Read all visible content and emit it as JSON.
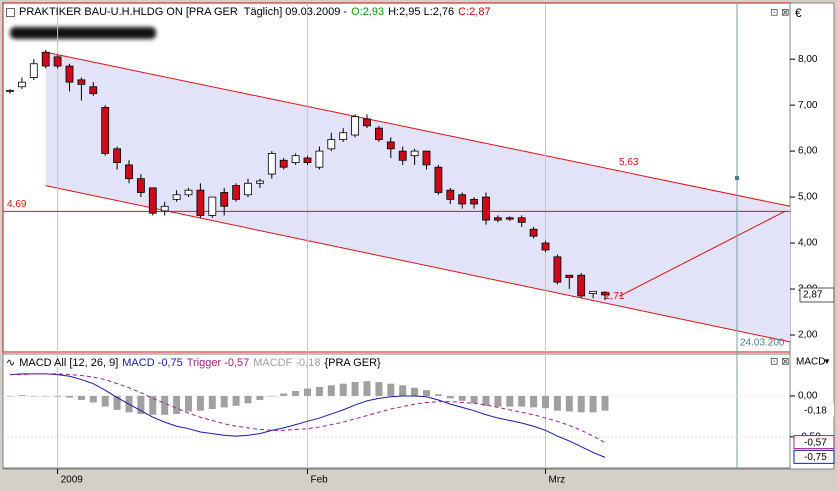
{
  "chart_data": [
    {
      "type": "candlestick",
      "title": "PRAKTIKER BAU-U.H.HLDG ON [PRA GER  Täglich] 09.03.2009 -",
      "info": [
        "O:2,93",
        "H:2,95 L:2,76",
        "C:2,87"
      ],
      "currency": "€",
      "categories": [
        null,
        null,
        null,
        null,
        "2009",
        null,
        null,
        null,
        null,
        null,
        null,
        null,
        null,
        null,
        null,
        null,
        null,
        null,
        null,
        null,
        null,
        null,
        null,
        null,
        null,
        "Feb",
        null,
        null,
        null,
        null,
        null,
        null,
        null,
        null,
        null,
        null,
        null,
        null,
        null,
        null,
        null,
        null,
        null,
        null,
        null,
        "Mrz",
        null,
        null,
        null,
        null,
        null
      ],
      "open": [
        7.3,
        7.4,
        7.6,
        8.15,
        8.05,
        7.85,
        7.55,
        7.4,
        6.95,
        6.05,
        5.7,
        5.4,
        5.2,
        4.7,
        4.95,
        5.05,
        5.15,
        4.6,
        5.1,
        5.25,
        5.05,
        5.3,
        5.5,
        5.8,
        5.75,
        5.85,
        5.65,
        6.05,
        6.25,
        6.35,
        6.7,
        6.5,
        6.2,
        6.0,
        5.9,
        6.0,
        5.65,
        5.15,
        5.05,
        4.95,
        5.0,
        4.55,
        4.55,
        4.55,
        4.3,
        4.0,
        3.7,
        3.3,
        3.3,
        2.9,
        2.93
      ],
      "high": [
        7.35,
        7.6,
        8.0,
        8.2,
        8.1,
        7.9,
        7.6,
        7.5,
        7.0,
        6.1,
        5.8,
        5.5,
        5.2,
        4.9,
        5.15,
        5.2,
        5.3,
        5.0,
        5.2,
        5.3,
        5.4,
        5.4,
        6.0,
        5.85,
        5.95,
        5.9,
        6.1,
        6.4,
        6.5,
        6.8,
        6.8,
        6.55,
        6.3,
        6.1,
        6.05,
        6.0,
        5.7,
        5.2,
        5.1,
        5.0,
        5.1,
        4.6,
        4.58,
        4.6,
        4.35,
        4.05,
        3.75,
        3.3,
        3.35,
        2.95,
        2.95
      ],
      "low": [
        7.25,
        7.35,
        7.55,
        7.8,
        7.8,
        7.3,
        7.1,
        7.2,
        5.9,
        5.6,
        5.3,
        5.0,
        4.6,
        4.6,
        4.9,
        5.0,
        4.55,
        4.55,
        4.6,
        4.9,
        5.0,
        5.2,
        5.4,
        5.6,
        5.7,
        5.7,
        5.6,
        6.0,
        6.2,
        6.3,
        6.5,
        6.2,
        5.85,
        5.7,
        5.7,
        5.6,
        5.05,
        4.85,
        4.75,
        4.75,
        4.4,
        4.45,
        4.48,
        4.35,
        4.1,
        3.8,
        3.1,
        3.0,
        2.8,
        2.8,
        2.76
      ],
      "close": [
        7.32,
        7.5,
        7.9,
        7.85,
        7.85,
        7.5,
        7.45,
        7.25,
        5.95,
        5.75,
        5.4,
        5.1,
        4.65,
        4.8,
        5.05,
        5.15,
        4.6,
        5.0,
        4.8,
        4.95,
        5.3,
        5.35,
        5.95,
        5.65,
        5.9,
        5.75,
        6.0,
        6.25,
        6.4,
        6.75,
        6.55,
        6.25,
        6.05,
        5.8,
        6.0,
        5.7,
        5.1,
        4.95,
        4.85,
        4.85,
        4.5,
        4.5,
        4.52,
        4.45,
        4.15,
        3.85,
        3.15,
        3.25,
        2.85,
        2.95,
        2.87
      ],
      "up_color": "#ffffff",
      "down_color": "#cc0a1a",
      "ylim": [
        1.63,
        9.2
      ],
      "yticks": [
        {
          "value": 2,
          "label": "2,00"
        },
        {
          "value": 3,
          "label": "3,00"
        },
        {
          "value": 4,
          "label": "4,00"
        },
        {
          "value": 5,
          "label": "5,00"
        },
        {
          "value": 6,
          "label": "6,00"
        },
        {
          "value": 7,
          "label": "7,00"
        },
        {
          "value": 8,
          "label": "8,00"
        }
      ],
      "grid": true,
      "channel": {
        "upper": [
          8.15,
          4.8
        ],
        "lower": [
          5.25,
          1.85
        ],
        "color": "#dd1111",
        "fill": "#e2e2f8"
      },
      "hlines": [
        {
          "value": 4.69,
          "label": "4,69",
          "color": "#dd1111"
        }
      ],
      "annotations": [
        {
          "value": 5.63,
          "label": "5,63"
        },
        {
          "value": 2.71,
          "label": "2,71"
        }
      ],
      "last_price": {
        "value": 2.87,
        "label": "2,87"
      },
      "cursor_label": "24.03.200"
    },
    {
      "type": "macd",
      "title": "MACD All [12, 26, 9]",
      "symbol": "{PRA GER}",
      "axis_title": "MACD",
      "series": [
        {
          "name": "MACD",
          "color": "#1a1aa8",
          "style": "line",
          "last": {
            "value": -0.75,
            "label": "-0,75"
          },
          "values": [
            0.26,
            0.27,
            0.27,
            0.27,
            0.26,
            0.24,
            0.2,
            0.15,
            0.07,
            -0.02,
            -0.1,
            -0.18,
            -0.26,
            -0.32,
            -0.37,
            -0.4,
            -0.44,
            -0.46,
            -0.48,
            -0.49,
            -0.48,
            -0.46,
            -0.42,
            -0.39,
            -0.35,
            -0.31,
            -0.27,
            -0.22,
            -0.17,
            -0.11,
            -0.06,
            -0.03,
            -0.01,
            0.0,
            0.0,
            -0.01,
            -0.05,
            -0.1,
            -0.14,
            -0.18,
            -0.23,
            -0.27,
            -0.3,
            -0.33,
            -0.37,
            -0.42,
            -0.49,
            -0.55,
            -0.62,
            -0.69,
            -0.75
          ]
        },
        {
          "name": "Trigger",
          "color": "#a0208a",
          "style": "dashed",
          "last": {
            "value": -0.57,
            "label": "-0,57"
          },
          "values": [
            0.26,
            0.26,
            0.27,
            0.27,
            0.27,
            0.26,
            0.25,
            0.23,
            0.2,
            0.15,
            0.1,
            0.04,
            -0.03,
            -0.09,
            -0.15,
            -0.21,
            -0.26,
            -0.3,
            -0.34,
            -0.37,
            -0.39,
            -0.41,
            -0.42,
            -0.42,
            -0.41,
            -0.4,
            -0.38,
            -0.35,
            -0.32,
            -0.28,
            -0.24,
            -0.2,
            -0.16,
            -0.13,
            -0.1,
            -0.08,
            -0.07,
            -0.07,
            -0.08,
            -0.09,
            -0.11,
            -0.14,
            -0.17,
            -0.2,
            -0.23,
            -0.27,
            -0.31,
            -0.36,
            -0.42,
            -0.49,
            -0.57
          ]
        },
        {
          "name": "MACDF",
          "color": "#a0a0a0",
          "style": "bar",
          "last": {
            "value": -0.18,
            "label": "-0,18"
          },
          "values": [
            0.0,
            0.01,
            0.0,
            0.0,
            -0.01,
            -0.02,
            -0.05,
            -0.08,
            -0.13,
            -0.17,
            -0.2,
            -0.22,
            -0.23,
            -0.23,
            -0.22,
            -0.19,
            -0.18,
            -0.16,
            -0.14,
            -0.12,
            -0.09,
            -0.05,
            0.0,
            0.03,
            0.06,
            0.09,
            0.11,
            0.13,
            0.15,
            0.17,
            0.18,
            0.17,
            0.15,
            0.13,
            0.1,
            0.07,
            0.02,
            -0.03,
            -0.06,
            -0.09,
            -0.12,
            -0.13,
            -0.13,
            -0.13,
            -0.14,
            -0.15,
            -0.18,
            -0.19,
            -0.2,
            -0.2,
            -0.18
          ]
        }
      ],
      "ylim": [
        -0.88,
        0.5
      ],
      "yticks": [
        {
          "value": 0,
          "label": "0,00"
        },
        {
          "value": -0.5,
          "label": "-0,50"
        }
      ]
    }
  ]
}
